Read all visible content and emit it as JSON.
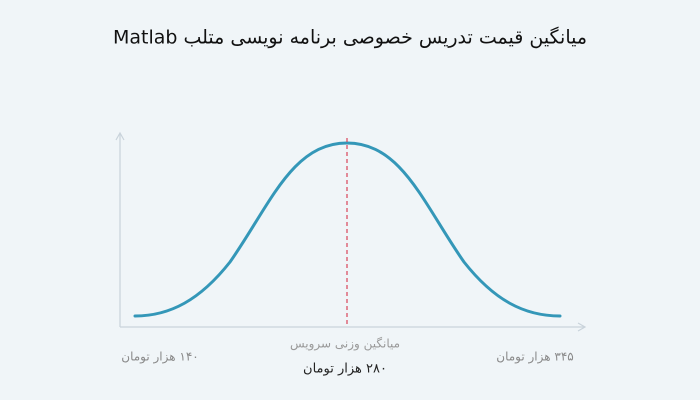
{
  "title": "میانگین قیمت تدریس خصوصی برنامه نویسی متلب Matlab",
  "labels": {
    "min": "۱۴۰ هزار تومان",
    "max": "۳۴۵ هزار تومان",
    "mean_caption": "میانگین وزنی سرویس",
    "mean": "۲۸۰ هزار تومان"
  }
}
